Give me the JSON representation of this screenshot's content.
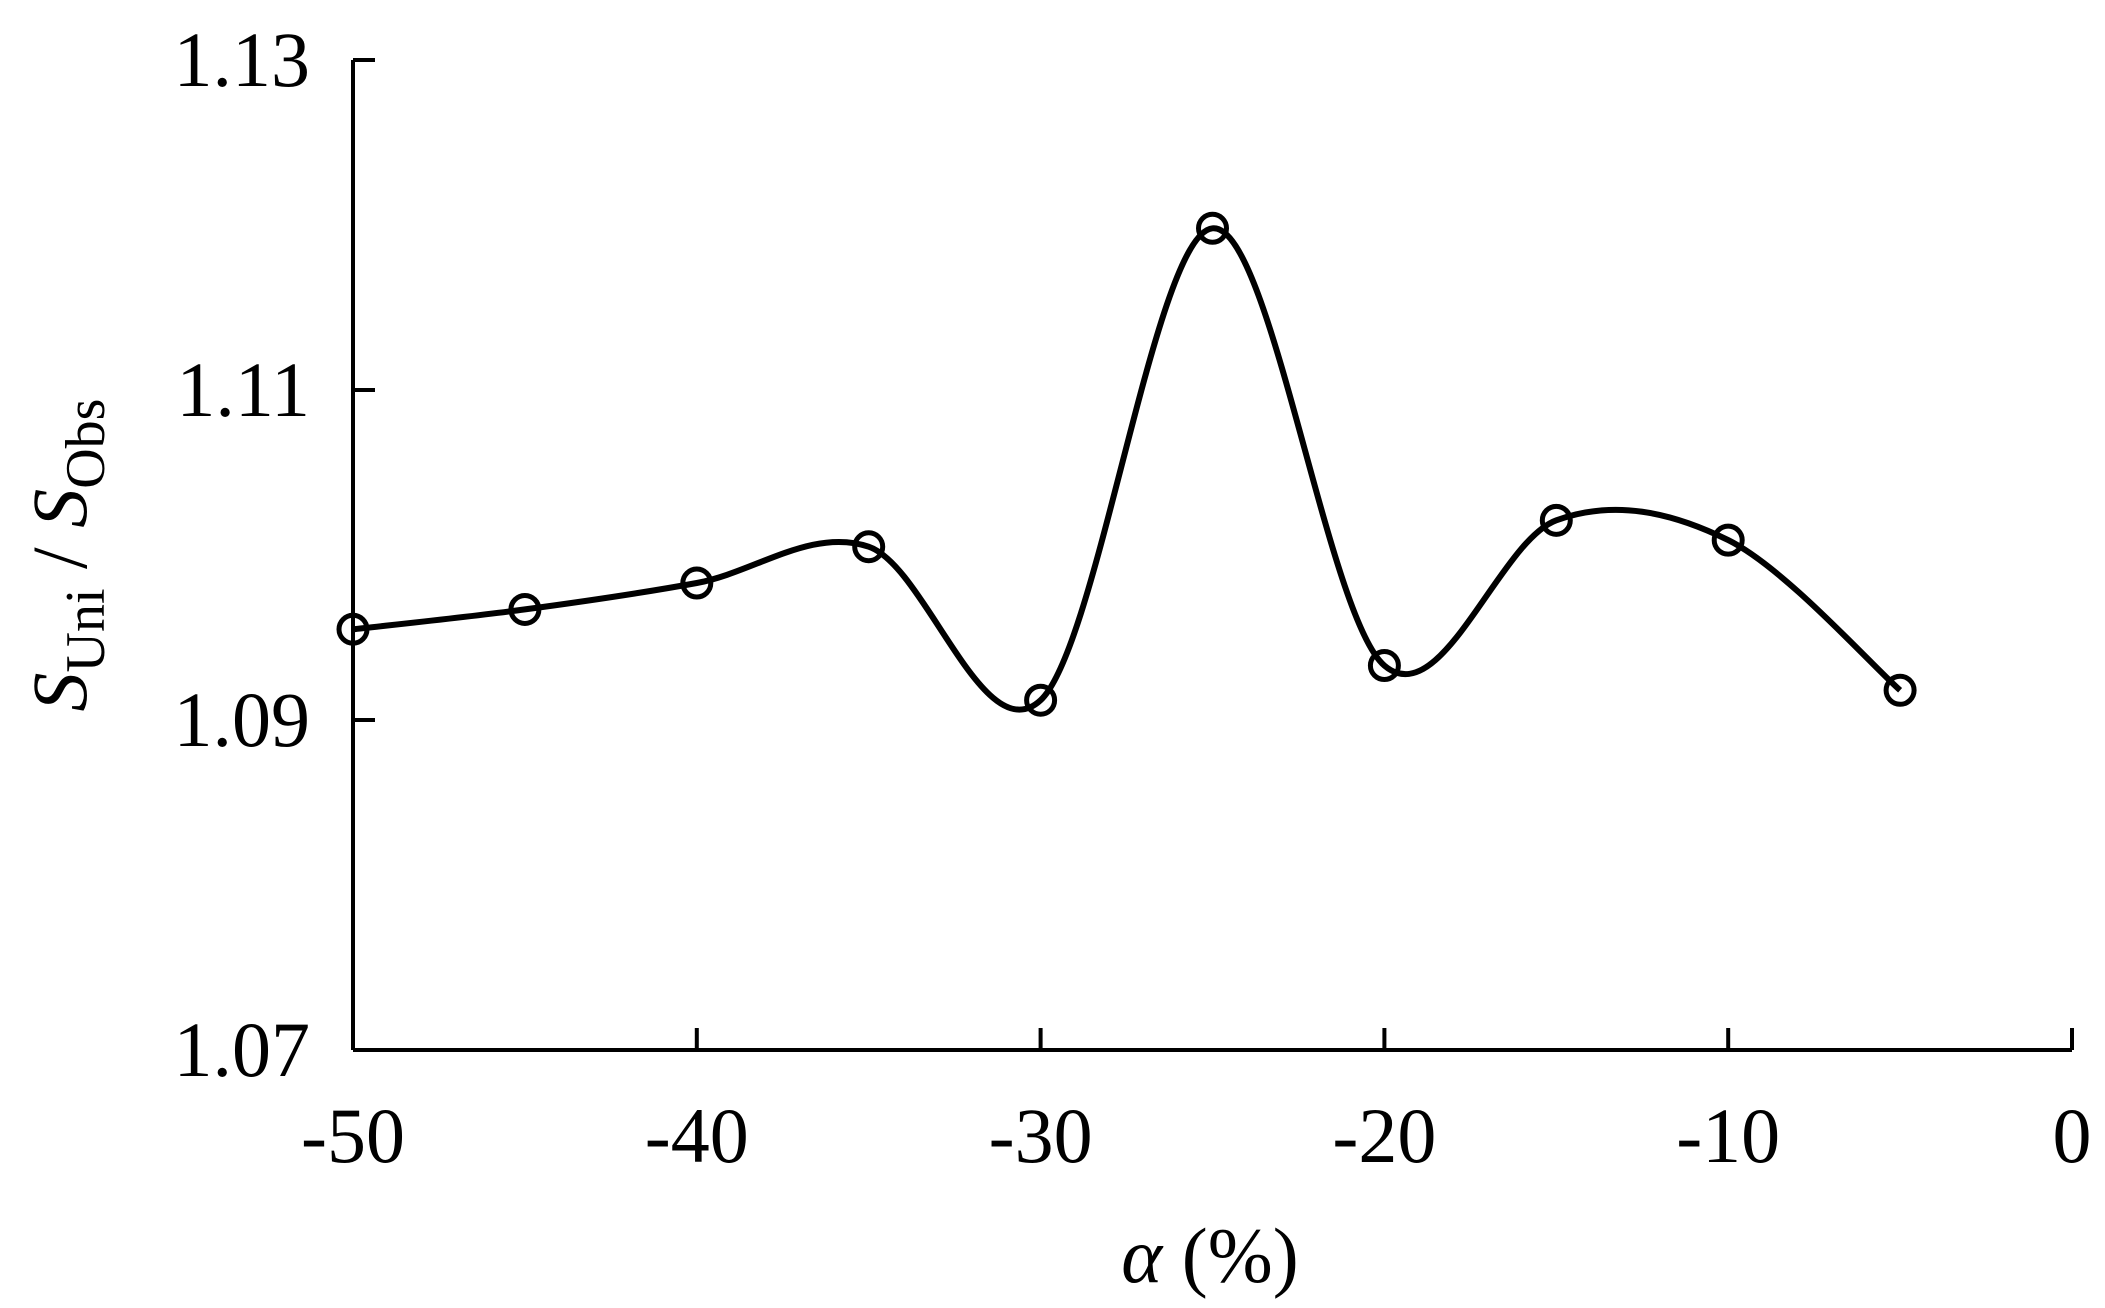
{
  "chart_data": {
    "type": "line",
    "x": [
      -50,
      -45,
      -40,
      -35,
      -30,
      -25,
      -20,
      -15,
      -10,
      -5
    ],
    "series": [
      {
        "values": [
          1.0955,
          1.0967,
          1.0983,
          1.1005,
          1.0912,
          1.1198,
          1.0933,
          1.1021,
          1.1009,
          1.0918
        ]
      }
    ],
    "x_ticks": [
      "-50",
      "-40",
      "-30",
      "-20",
      "-10",
      "0"
    ],
    "x_tick_values": [
      -50,
      -40,
      -30,
      -20,
      -10,
      0
    ],
    "y_ticks": [
      "1.07",
      "1.09",
      "1.11",
      "1.13"
    ],
    "y_tick_values": [
      1.07,
      1.09,
      1.11,
      1.13
    ],
    "xlabel": {
      "symbol": "α",
      "unit": " (%)"
    },
    "ylabel": {
      "numerator_symbol": "S",
      "numerator_subscript": "Uni",
      "separator": " / ",
      "denominator_symbol": "S",
      "denominator_subscript": "Obs"
    },
    "xlim": [
      -50,
      0
    ],
    "ylim": [
      1.07,
      1.13
    ],
    "grid": false,
    "marker": "open-circle",
    "line_style": "smooth",
    "line_color": "#000000"
  }
}
